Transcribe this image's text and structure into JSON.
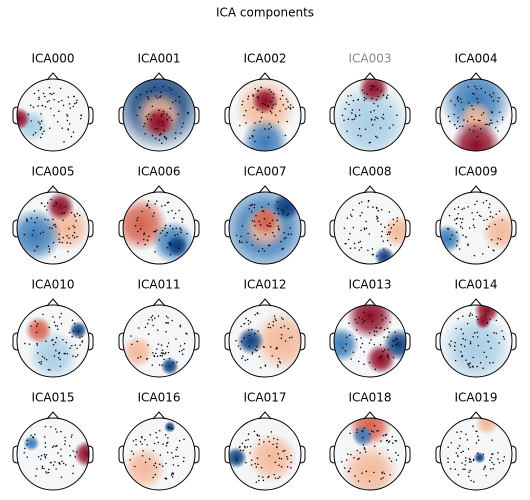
{
  "title": "ICA components",
  "components": [
    {
      "name": "ICA000"
    },
    {
      "name": "ICA001"
    },
    {
      "name": "ICA002"
    },
    {
      "name": "ICA003",
      "excluded": true
    },
    {
      "name": "ICA004"
    },
    {
      "name": "ICA005"
    },
    {
      "name": "ICA006"
    },
    {
      "name": "ICA007"
    },
    {
      "name": "ICA008"
    },
    {
      "name": "ICA009"
    },
    {
      "name": "ICA010"
    },
    {
      "name": "ICA011"
    },
    {
      "name": "ICA012"
    },
    {
      "name": "ICA013"
    },
    {
      "name": "ICA014"
    },
    {
      "name": "ICA015"
    },
    {
      "name": "ICA016"
    },
    {
      "name": "ICA017"
    },
    {
      "name": "ICA018"
    },
    {
      "name": "ICA019"
    }
  ]
}
